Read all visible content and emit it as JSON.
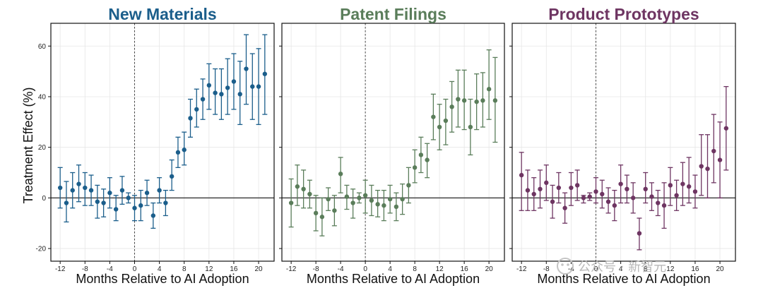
{
  "figure": {
    "ylabel": "Treatment Effect (%)",
    "watermark": "公众号 · 新智元"
  },
  "chart_data": [
    {
      "type": "scatter",
      "title": "New Materials",
      "title_color": "#1b5e8b",
      "color": "#1b5e8b",
      "xlabel": "Months Relative to AI Adoption",
      "ylabel": "Treatment Effect (%)",
      "xlim": [
        -13.5,
        22.5
      ],
      "ylim": [
        -25,
        69
      ],
      "xticks": [
        -12,
        -8,
        -4,
        0,
        4,
        8,
        12,
        16,
        20
      ],
      "yticks": [
        -20,
        0,
        20,
        40,
        60
      ],
      "grid": true,
      "x": [
        -12,
        -11,
        -10,
        -9,
        -8,
        -7,
        -6,
        -5,
        -4,
        -3,
        -2,
        -1,
        0,
        1,
        2,
        3,
        4,
        5,
        6,
        7,
        8,
        9,
        10,
        11,
        12,
        13,
        14,
        15,
        16,
        17,
        18,
        19,
        20,
        21
      ],
      "y": [
        4,
        -2,
        3,
        5.5,
        4,
        3,
        -1.5,
        -2,
        2,
        -4.5,
        3,
        0,
        -4,
        -3,
        2,
        -7,
        3,
        -2,
        8.5,
        18,
        19,
        31.5,
        35,
        39,
        44.5,
        41.5,
        41,
        43.5,
        46,
        41,
        51,
        44,
        44,
        49
      ],
      "lower": [
        -4,
        -9.5,
        -4,
        -1.5,
        -3,
        -3,
        -8,
        -7.5,
        -4,
        -9,
        -2.5,
        -2,
        -9,
        -9,
        -3,
        -12,
        -2,
        -7,
        3,
        12,
        13,
        24,
        28,
        31,
        35,
        33,
        31,
        33,
        35,
        29,
        37,
        31,
        29,
        33
      ],
      "upper": [
        12,
        6.5,
        10,
        13,
        10,
        9,
        5,
        3.5,
        8,
        1,
        8.5,
        2,
        1,
        3,
        7,
        -2,
        8,
        3,
        15,
        24,
        26,
        39,
        43,
        47,
        53,
        51,
        51,
        55,
        57,
        54,
        64.5,
        57,
        59,
        64.5
      ]
    },
    {
      "type": "scatter",
      "title": "Patent Filings",
      "title_color": "#5a7d5a",
      "color": "#5a7d5a",
      "xlabel": "Months Relative to AI Adoption",
      "ylabel": "Treatment Effect (%)",
      "xlim": [
        -13.5,
        22.5
      ],
      "ylim": [
        -25,
        69
      ],
      "xticks": [
        -12,
        -8,
        -4,
        0,
        4,
        8,
        12,
        16,
        20
      ],
      "yticks": [
        -20,
        0,
        20,
        40,
        60
      ],
      "grid": true,
      "x": [
        -12,
        -11,
        -10,
        -9,
        -8,
        -7,
        -6,
        -5,
        -4,
        -3,
        -2,
        -1,
        0,
        1,
        2,
        3,
        4,
        5,
        6,
        7,
        8,
        9,
        10,
        11,
        12,
        13,
        14,
        15,
        16,
        17,
        18,
        19,
        20,
        21
      ],
      "y": [
        -2,
        4.5,
        3.5,
        1.5,
        -6,
        -7.5,
        -0.5,
        -5,
        9.5,
        0.5,
        -2,
        0,
        1,
        -1,
        -2.5,
        -3,
        -0.5,
        -3.5,
        -0.5,
        5,
        12,
        17,
        15,
        32,
        28,
        30.5,
        36,
        39,
        38.5,
        28,
        38,
        38.5,
        43,
        38.5
      ],
      "lower": [
        -11.5,
        -3,
        -4,
        -4,
        -13,
        -15,
        -5,
        -11,
        2,
        -4.5,
        -8,
        -2,
        -6,
        -7,
        -7.5,
        -9,
        -6,
        -9,
        -6.5,
        -2,
        6,
        10,
        8,
        23,
        19,
        21,
        26,
        28,
        27,
        17,
        27,
        28,
        31,
        22
      ],
      "upper": [
        7.5,
        13,
        11,
        7,
        1,
        0,
        4,
        1,
        16,
        5,
        3.5,
        2,
        7,
        5,
        3,
        3,
        5,
        2,
        5.5,
        12,
        19,
        24,
        21.5,
        41,
        37,
        39,
        46,
        50.5,
        50.5,
        39,
        49,
        49.5,
        58.5,
        55.5
      ]
    },
    {
      "type": "scatter",
      "title": "Product Prototypes",
      "title_color": "#6e3562",
      "color": "#6e3562",
      "xlabel": "Months Relative to AI Adoption",
      "ylabel": "Treatment Effect (%)",
      "xlim": [
        -13.5,
        22.5
      ],
      "ylim": [
        -25,
        69
      ],
      "xticks": [
        -12,
        -8,
        -4,
        0,
        4,
        8,
        12,
        16,
        20
      ],
      "yticks": [
        -20,
        0,
        20,
        40,
        60
      ],
      "grid": true,
      "x": [
        -12,
        -11,
        -10,
        -9,
        -8,
        -7,
        -6,
        -5,
        -4,
        -3,
        -2,
        -1,
        0,
        1,
        2,
        3,
        4,
        5,
        6,
        7,
        8,
        9,
        10,
        11,
        12,
        13,
        14,
        15,
        16,
        17,
        18,
        19,
        20,
        21
      ],
      "y": [
        9,
        3,
        1.5,
        3.5,
        6,
        -1.5,
        4,
        -4,
        4,
        5,
        0,
        0.5,
        2.5,
        1.5,
        -1.5,
        -3,
        5.5,
        3.5,
        0,
        -14,
        3.5,
        0.5,
        -2,
        -3,
        5,
        1,
        5.5,
        4.5,
        2.5,
        12.5,
        11.5,
        18.5,
        15,
        27.5
      ],
      "lower": [
        -5,
        -5,
        -5,
        -4,
        -1,
        -8,
        -2,
        -10,
        -3,
        -1,
        -2,
        -1,
        -2,
        -4,
        -6,
        -9,
        -2,
        -2,
        -6,
        -20.5,
        -2,
        -5,
        -7,
        -12,
        -3,
        -5,
        -3,
        -2,
        -4,
        1,
        0,
        6,
        0,
        11
      ],
      "upper": [
        18,
        11,
        8,
        11,
        13,
        5,
        10,
        2,
        10,
        11,
        1,
        2,
        8,
        7,
        4,
        3,
        13,
        9,
        6,
        -8,
        10,
        6,
        3,
        6,
        12,
        7,
        14,
        16,
        9,
        25,
        25,
        33,
        30,
        44
      ]
    }
  ]
}
